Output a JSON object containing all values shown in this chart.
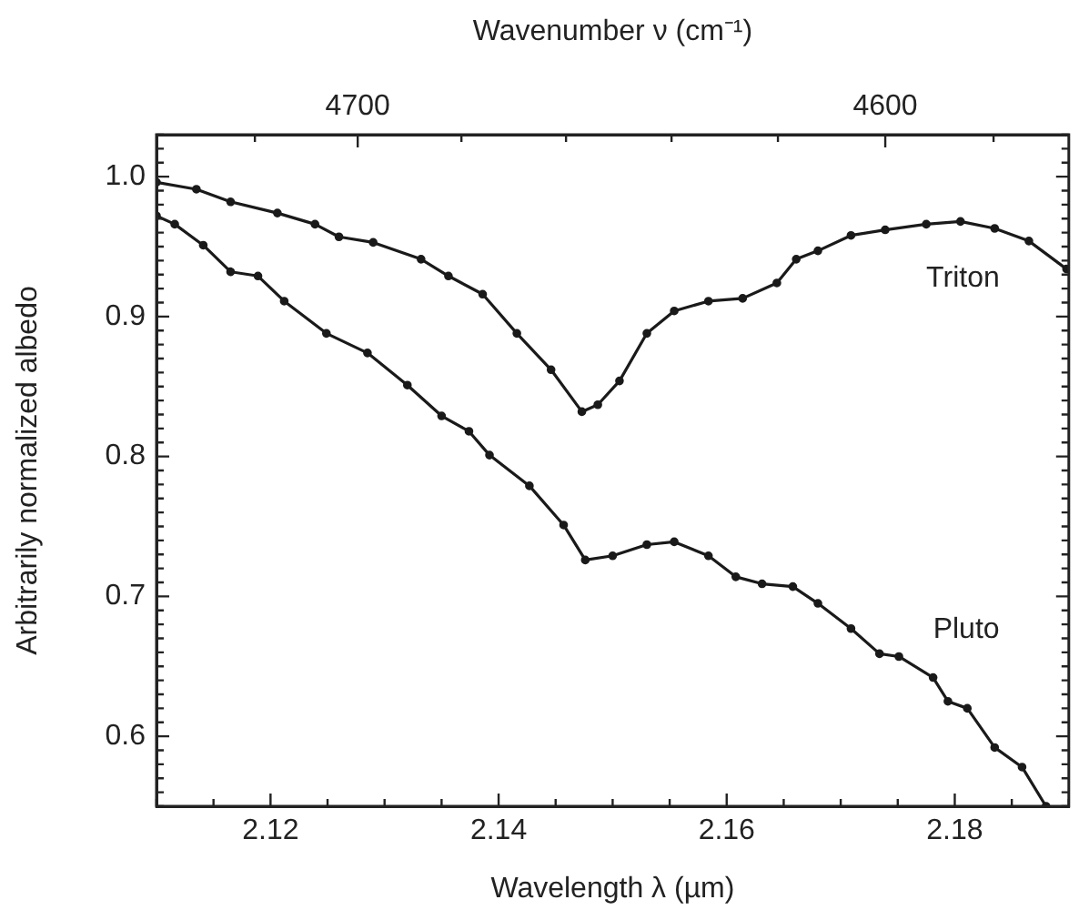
{
  "chart_data": {
    "type": "line",
    "xlabel": "Wavelength λ (µm)",
    "ylabel": "Arbitrarily normalized albedo",
    "x2label": "Wavenumber ν (cm⁻¹)",
    "xlim": [
      2.11,
      2.19
    ],
    "ylim": [
      0.55,
      1.03
    ],
    "xticks": [
      {
        "value": 2.11,
        "label": null
      },
      {
        "value": 2.115,
        "label": null
      },
      2.12,
      {
        "value": 2.125,
        "label": null
      },
      {
        "value": 2.13,
        "label": null
      },
      {
        "value": 2.135,
        "label": null
      },
      2.14,
      {
        "value": 2.145,
        "label": null
      },
      {
        "value": 2.15,
        "label": null
      },
      {
        "value": 2.155,
        "label": null
      },
      2.16,
      {
        "value": 2.165,
        "label": null
      },
      {
        "value": 2.17,
        "label": null
      },
      {
        "value": 2.175,
        "label": null
      },
      2.18,
      {
        "value": 2.185,
        "label": null
      },
      {
        "value": 2.19,
        "label": null
      }
    ],
    "yticks": [
      {
        "value": 0.55,
        "label": null
      },
      {
        "value": 0.56,
        "label": null
      },
      {
        "value": 0.57,
        "label": null
      },
      {
        "value": 0.58,
        "label": null
      },
      {
        "value": 0.59,
        "label": null
      },
      {
        "value": 0.6,
        "label": "0.6"
      },
      {
        "value": 0.61,
        "label": null
      },
      {
        "value": 0.62,
        "label": null
      },
      {
        "value": 0.63,
        "label": null
      },
      {
        "value": 0.64,
        "label": null
      },
      {
        "value": 0.65,
        "label": null
      },
      {
        "value": 0.66,
        "label": null
      },
      {
        "value": 0.67,
        "label": null
      },
      {
        "value": 0.68,
        "label": null
      },
      {
        "value": 0.69,
        "label": null
      },
      {
        "value": 0.7,
        "label": "0.7"
      },
      {
        "value": 0.71,
        "label": null
      },
      {
        "value": 0.72,
        "label": null
      },
      {
        "value": 0.73,
        "label": null
      },
      {
        "value": 0.74,
        "label": null
      },
      {
        "value": 0.75,
        "label": null
      },
      {
        "value": 0.76,
        "label": null
      },
      {
        "value": 0.77,
        "label": null
      },
      {
        "value": 0.78,
        "label": null
      },
      {
        "value": 0.79,
        "label": null
      },
      {
        "value": 0.8,
        "label": "0.8"
      },
      {
        "value": 0.81,
        "label": null
      },
      {
        "value": 0.82,
        "label": null
      },
      {
        "value": 0.83,
        "label": null
      },
      {
        "value": 0.84,
        "label": null
      },
      {
        "value": 0.85,
        "label": null
      },
      {
        "value": 0.86,
        "label": null
      },
      {
        "value": 0.87,
        "label": null
      },
      {
        "value": 0.88,
        "label": null
      },
      {
        "value": 0.89,
        "label": null
      },
      {
        "value": 0.9,
        "label": "0.9"
      },
      {
        "value": 0.91,
        "label": null
      },
      {
        "value": 0.92,
        "label": null
      },
      {
        "value": 0.93,
        "label": null
      },
      {
        "value": 0.94,
        "label": null
      },
      {
        "value": 0.95,
        "label": null
      },
      {
        "value": 0.96,
        "label": null
      },
      {
        "value": 0.97,
        "label": null
      },
      {
        "value": 0.98,
        "label": null
      },
      {
        "value": 0.99,
        "label": null
      },
      {
        "value": 1.0,
        "label": "1.0"
      },
      {
        "value": 1.01,
        "label": null
      },
      {
        "value": 1.02,
        "label": null
      },
      {
        "value": 1.03,
        "label": null
      }
    ],
    "x2lim": [
      4739.3,
      4566.2
    ],
    "x2ticks": [
      {
        "value": 4720,
        "label": null
      },
      4700,
      {
        "value": 4680,
        "label": null
      },
      {
        "value": 4660,
        "label": null
      },
      {
        "value": 4640,
        "label": null
      },
      {
        "value": 4620,
        "label": null
      },
      4600,
      {
        "value": 4580,
        "label": null
      }
    ],
    "grid": false,
    "legend": "right",
    "marker": "circle",
    "line_style": "solid",
    "series": [
      {
        "name": "Triton",
        "color": "#1a1a1a",
        "x": [
          2.11,
          2.1135,
          2.1165,
          2.1206,
          2.1239,
          2.126,
          2.129,
          2.1332,
          2.1356,
          2.1386,
          2.1416,
          2.1446,
          2.1473,
          2.1487,
          2.1506,
          2.153,
          2.1554,
          2.1584,
          2.1614,
          2.1644,
          2.1661,
          2.168,
          2.1709,
          2.1739,
          2.1775,
          2.1805,
          2.1835,
          2.1865,
          2.1898
        ],
        "values": [
          0.996,
          0.991,
          0.982,
          0.974,
          0.966,
          0.957,
          0.953,
          0.941,
          0.929,
          0.916,
          0.888,
          0.862,
          0.832,
          0.837,
          0.854,
          0.888,
          0.904,
          0.911,
          0.913,
          0.924,
          0.941,
          0.947,
          0.958,
          0.962,
          0.966,
          0.968,
          0.963,
          0.954,
          0.934
        ]
      },
      {
        "name": "Pluto",
        "color": "#1a1a1a",
        "x": [
          2.11,
          2.1116,
          2.1141,
          2.1165,
          2.1189,
          2.1212,
          2.1249,
          2.1285,
          2.132,
          2.135,
          2.1374,
          2.1392,
          2.1427,
          2.1457,
          2.1476,
          2.15,
          2.153,
          2.1554,
          2.1584,
          2.1608,
          2.1631,
          2.1658,
          2.168,
          2.1709,
          2.1734,
          2.1751,
          2.1781,
          2.1794,
          2.1811,
          2.1835,
          2.1859,
          2.188
        ],
        "values": [
          0.972,
          0.966,
          0.951,
          0.932,
          0.929,
          0.911,
          0.888,
          0.874,
          0.851,
          0.829,
          0.818,
          0.801,
          0.779,
          0.751,
          0.726,
          0.729,
          0.737,
          0.739,
          0.729,
          0.714,
          0.709,
          0.707,
          0.695,
          0.677,
          0.659,
          0.657,
          0.642,
          0.625,
          0.62,
          0.592,
          0.578,
          0.55
        ]
      }
    ]
  }
}
